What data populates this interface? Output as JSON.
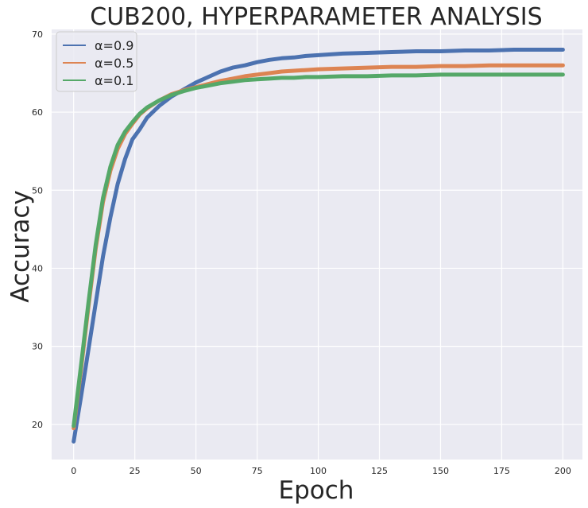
{
  "chart_data": {
    "type": "line",
    "title": "CUB200, HYPERPARAMETER ANALYSIS",
    "xlabel": "Epoch",
    "ylabel": "Accuracy",
    "xlim": [
      -9,
      208
    ],
    "ylim": [
      15.5,
      70.6
    ],
    "xticks": [
      0,
      25,
      50,
      75,
      100,
      125,
      150,
      175,
      200
    ],
    "yticks": [
      20,
      30,
      40,
      50,
      60,
      70
    ],
    "grid": true,
    "background": "#EAEAF2",
    "legend_position": "upper-left",
    "series": [
      {
        "name": "α=0.9",
        "color": "#4C72B0",
        "x": [
          0,
          3,
          6,
          9,
          12,
          15,
          18,
          21,
          24,
          27,
          30,
          35,
          40,
          45,
          50,
          55,
          60,
          65,
          70,
          75,
          80,
          85,
          90,
          95,
          100,
          110,
          120,
          130,
          140,
          150,
          160,
          170,
          180,
          190,
          200
        ],
        "y": [
          17.8,
          23.5,
          29.5,
          35.5,
          41.5,
          46.5,
          50.8,
          54.0,
          56.5,
          57.8,
          59.3,
          60.8,
          62.0,
          62.9,
          63.8,
          64.5,
          65.2,
          65.7,
          66.0,
          66.4,
          66.7,
          66.9,
          67.0,
          67.2,
          67.3,
          67.5,
          67.6,
          67.7,
          67.8,
          67.8,
          67.9,
          67.9,
          68.0,
          68.0,
          68.0
        ]
      },
      {
        "name": "α=0.5",
        "color": "#DD8452",
        "x": [
          0,
          3,
          6,
          9,
          12,
          15,
          18,
          21,
          24,
          27,
          30,
          35,
          40,
          45,
          50,
          55,
          60,
          65,
          70,
          75,
          80,
          85,
          90,
          95,
          100,
          110,
          120,
          130,
          140,
          150,
          160,
          170,
          180,
          190,
          200
        ],
        "y": [
          19.5,
          27.0,
          35.0,
          42.5,
          48.5,
          52.5,
          55.3,
          57.2,
          58.5,
          59.7,
          60.5,
          61.5,
          62.3,
          62.8,
          63.2,
          63.6,
          64.0,
          64.3,
          64.6,
          64.8,
          65.0,
          65.2,
          65.3,
          65.4,
          65.5,
          65.6,
          65.7,
          65.8,
          65.8,
          65.9,
          65.9,
          66.0,
          66.0,
          66.0,
          66.0
        ]
      },
      {
        "name": "α=0.1",
        "color": "#55A868",
        "x": [
          0,
          3,
          6,
          9,
          12,
          15,
          18,
          21,
          24,
          27,
          30,
          35,
          40,
          45,
          50,
          55,
          60,
          65,
          70,
          75,
          80,
          85,
          90,
          95,
          100,
          110,
          120,
          130,
          140,
          150,
          160,
          170,
          180,
          190,
          200
        ],
        "y": [
          19.8,
          27.5,
          35.5,
          43.0,
          49.0,
          53.0,
          55.8,
          57.5,
          58.7,
          59.8,
          60.6,
          61.5,
          62.2,
          62.7,
          63.1,
          63.4,
          63.7,
          63.9,
          64.1,
          64.2,
          64.3,
          64.4,
          64.4,
          64.5,
          64.5,
          64.6,
          64.6,
          64.7,
          64.7,
          64.8,
          64.8,
          64.8,
          64.8,
          64.8,
          64.8
        ]
      }
    ]
  }
}
